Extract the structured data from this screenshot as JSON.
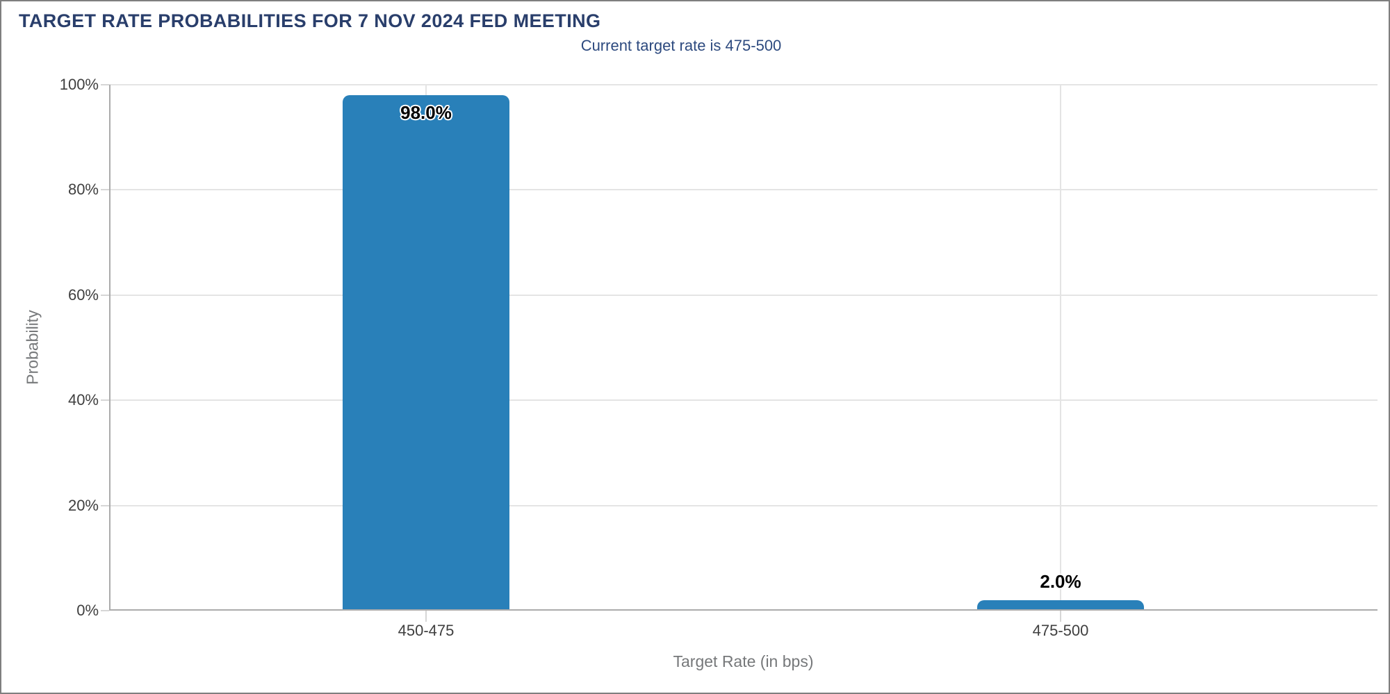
{
  "chart_data": {
    "type": "bar",
    "title": "TARGET RATE PROBABILITIES FOR 7 NOV 2024 FED MEETING",
    "subtitle": "Current target rate is 475-500",
    "categories": [
      "450-475",
      "475-500"
    ],
    "values": [
      98.0,
      2.0
    ],
    "value_labels": [
      "98.0%",
      "2.0%"
    ],
    "xlabel": "Target Rate (in bps)",
    "ylabel": "Probability",
    "ylim": [
      0,
      100
    ],
    "yticks": [
      0,
      20,
      40,
      60,
      80,
      100
    ],
    "ytick_labels": [
      "0%",
      "20%",
      "40%",
      "60%",
      "80%",
      "100%"
    ],
    "grid": true,
    "legend": "none",
    "bar_color": "#2980b9",
    "colors": {
      "title": "#293e6b",
      "subtitle": "#2d4a7f",
      "axis_title": "#76787a",
      "tick_label": "#3f3f3f",
      "gridline": "#e4e4e4",
      "tick_mark": "#d6d6d6",
      "axis_line": "#ababab",
      "frame_border": "#7f7f7f"
    }
  }
}
